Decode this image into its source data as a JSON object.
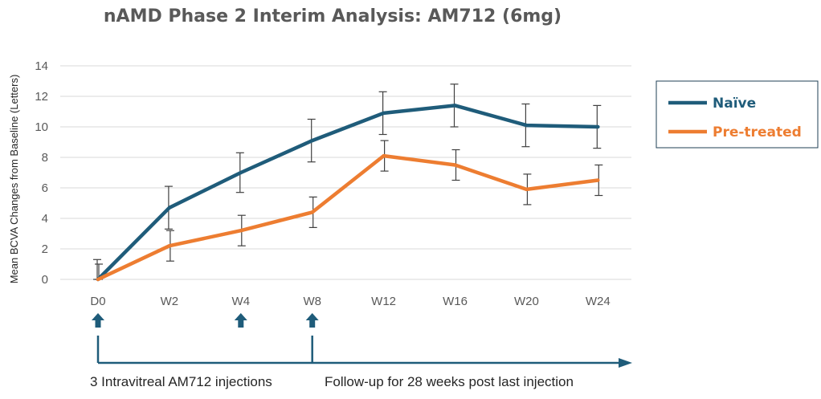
{
  "chart_data": {
    "type": "line",
    "title": "nAMD Phase 2 Interim Analysis: AM712 (6mg)",
    "ylabel": "Mean BCVA Changes from Baseline (Letters)",
    "xlabel": "",
    "categories": [
      "D0",
      "W2",
      "W4",
      "W8",
      "W12",
      "W16",
      "W20",
      "W24"
    ],
    "ylim": [
      0,
      14
    ],
    "yticks": [
      0,
      2,
      4,
      6,
      8,
      10,
      12,
      14
    ],
    "grid": true,
    "legend_position": "right",
    "series": [
      {
        "name": "Naïve",
        "color": "#1F5C7A",
        "values": [
          0,
          4.7,
          7.0,
          9.1,
          10.9,
          11.4,
          10.1,
          10.0
        ],
        "error": [
          1.3,
          1.4,
          1.3,
          1.4,
          1.4,
          1.4,
          1.4,
          1.4
        ]
      },
      {
        "name": "Pre-treated",
        "color": "#ED7D31",
        "values": [
          0,
          2.2,
          3.2,
          4.4,
          8.1,
          7.5,
          5.9,
          6.5
        ],
        "error": [
          1.0,
          1.0,
          1.0,
          1.0,
          1.0,
          1.0,
          1.0,
          1.0
        ]
      }
    ],
    "injection_markers": [
      "D0",
      "W4",
      "W8"
    ],
    "arrow_color": "#1F5C7A",
    "timeline": {
      "left_label": "3 Intravitreal AM712 injections",
      "right_label": "Follow-up for 28 weeks post last injection"
    }
  }
}
